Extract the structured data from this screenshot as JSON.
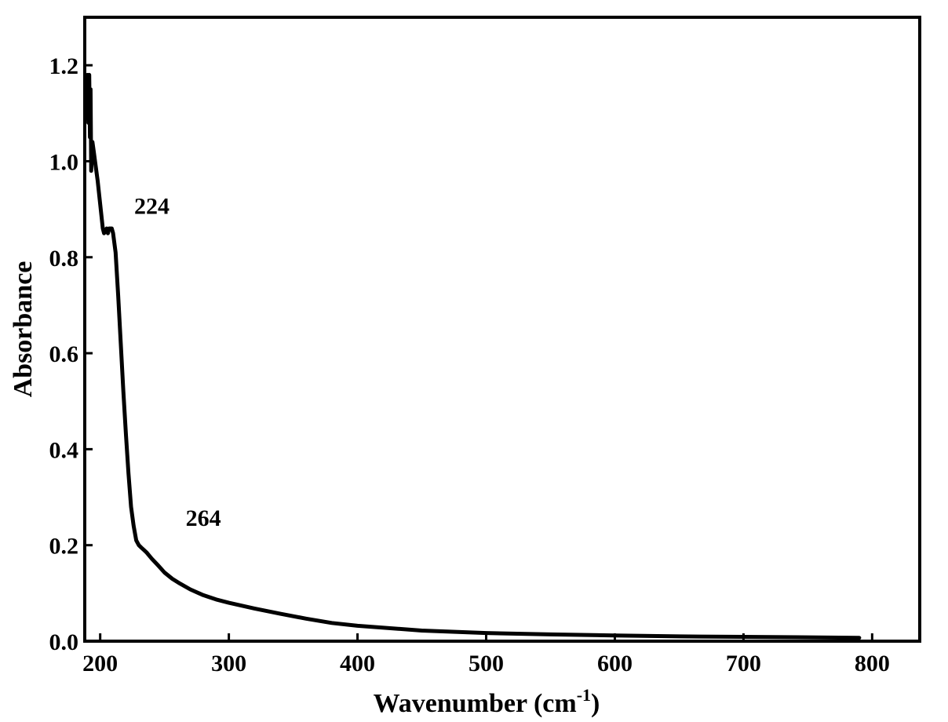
{
  "chart_data": {
    "type": "line",
    "xlabel": "Wavenumber (cm",
    "xlabel_sup": "-1",
    "xlabel_close": ")",
    "ylabel": "Absorbance",
    "xlim": [
      188,
      837
    ],
    "ylim": [
      0.0,
      1.3
    ],
    "xticks": [
      {
        "value": 200,
        "label": "200"
      },
      {
        "value": 300,
        "label": "300"
      },
      {
        "value": 400,
        "label": "400"
      },
      {
        "value": 500,
        "label": "500"
      },
      {
        "value": 600,
        "label": "600"
      },
      {
        "value": 700,
        "label": "700"
      },
      {
        "value": 800,
        "label": "800"
      }
    ],
    "yticks": [
      {
        "value": 0.0,
        "label": "0.0"
      },
      {
        "value": 0.2,
        "label": "0.2"
      },
      {
        "value": 0.4,
        "label": "0.4"
      },
      {
        "value": 0.6,
        "label": "0.6"
      },
      {
        "value": 0.8,
        "label": "0.8"
      },
      {
        "value": 1.0,
        "label": "1.0"
      },
      {
        "value": 1.2,
        "label": "1.2"
      }
    ],
    "grid": false,
    "line_color": "#000000",
    "series": [
      {
        "x": [
          190,
          190.8,
          191.5,
          192,
          192.5,
          193,
          194,
          195,
          196,
          198,
          200,
          202,
          203,
          205,
          206,
          207,
          209,
          210,
          212,
          214,
          216,
          218,
          220,
          222,
          224,
          226,
          228,
          230,
          232,
          234,
          236,
          240,
          245,
          250,
          256,
          262,
          270,
          280,
          290,
          300,
          320,
          340,
          360,
          380,
          400,
          450,
          500,
          550,
          600,
          650,
          700,
          750,
          790
        ],
        "y": [
          1.18,
          1.08,
          1.18,
          1.05,
          1.15,
          0.98,
          1.04,
          1.02,
          1.0,
          0.96,
          0.91,
          0.86,
          0.85,
          0.86,
          0.85,
          0.86,
          0.86,
          0.85,
          0.81,
          0.72,
          0.62,
          0.52,
          0.43,
          0.35,
          0.28,
          0.24,
          0.21,
          0.2,
          0.195,
          0.19,
          0.185,
          0.172,
          0.158,
          0.143,
          0.13,
          0.12,
          0.108,
          0.096,
          0.087,
          0.08,
          0.068,
          0.057,
          0.047,
          0.038,
          0.032,
          0.022,
          0.017,
          0.014,
          0.012,
          0.01,
          0.009,
          0.008,
          0.007
        ]
      }
    ],
    "annotations": [
      {
        "text": "224",
        "x": 224,
        "y": 0.89
      },
      {
        "text": "264",
        "x": 264,
        "y": 0.24
      }
    ]
  }
}
